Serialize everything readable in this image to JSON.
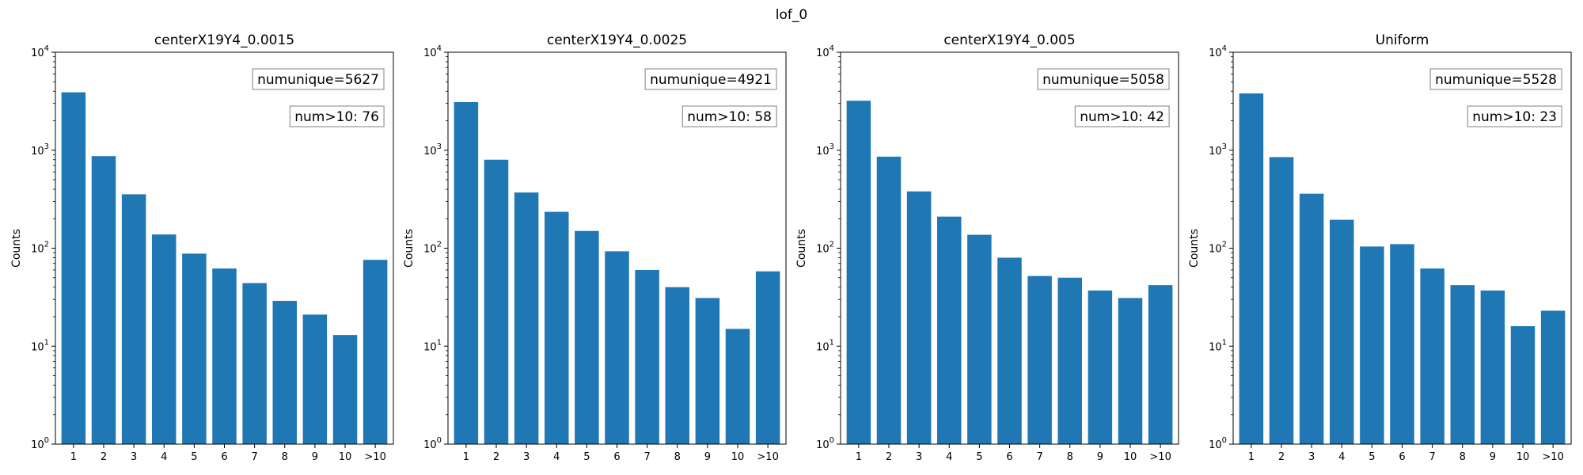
{
  "figure": {
    "title": "lof_0"
  },
  "chart_data": [
    {
      "type": "bar",
      "title": "centerX19Y4_0.0015",
      "categories": [
        "1",
        "2",
        "3",
        "4",
        "5",
        "6",
        "7",
        "8",
        "9",
        "10",
        ">10"
      ],
      "values": [
        3900,
        870,
        355,
        138,
        88,
        62,
        44,
        29,
        21,
        13,
        76
      ],
      "xlabel": "",
      "ylabel": "Counts",
      "yscale": "log",
      "ylim": [
        1,
        10000
      ],
      "ytick_labels": [
        {
          "base": "10",
          "exp": "0"
        },
        {
          "base": "10",
          "exp": "1"
        },
        {
          "base": "10",
          "exp": "2"
        },
        {
          "base": "10",
          "exp": "3"
        },
        {
          "base": "10",
          "exp": "4"
        }
      ],
      "annotations": [
        "numunique=5627",
        "num>10: 76"
      ],
      "bar_color": "#1f77b4",
      "grid": false
    },
    {
      "type": "bar",
      "title": "centerX19Y4_0.0025",
      "categories": [
        "1",
        "2",
        "3",
        "4",
        "5",
        "6",
        "7",
        "8",
        "9",
        "10",
        ">10"
      ],
      "values": [
        3100,
        800,
        370,
        235,
        150,
        93,
        60,
        40,
        31,
        15,
        58
      ],
      "xlabel": "",
      "ylabel": "Counts",
      "yscale": "log",
      "ylim": [
        1,
        10000
      ],
      "ytick_labels": [
        {
          "base": "10",
          "exp": "0"
        },
        {
          "base": "10",
          "exp": "1"
        },
        {
          "base": "10",
          "exp": "2"
        },
        {
          "base": "10",
          "exp": "3"
        },
        {
          "base": "10",
          "exp": "4"
        }
      ],
      "annotations": [
        "numunique=4921",
        "num>10: 58"
      ],
      "bar_color": "#1f77b4",
      "grid": false
    },
    {
      "type": "bar",
      "title": "centerX19Y4_0.005",
      "categories": [
        "1",
        "2",
        "3",
        "4",
        "5",
        "6",
        "7",
        "8",
        "9",
        "10",
        ">10"
      ],
      "values": [
        3200,
        860,
        380,
        210,
        137,
        80,
        52,
        50,
        37,
        31,
        42
      ],
      "xlabel": "",
      "ylabel": "Counts",
      "yscale": "log",
      "ylim": [
        1,
        10000
      ],
      "ytick_labels": [
        {
          "base": "10",
          "exp": "0"
        },
        {
          "base": "10",
          "exp": "1"
        },
        {
          "base": "10",
          "exp": "2"
        },
        {
          "base": "10",
          "exp": "3"
        },
        {
          "base": "10",
          "exp": "4"
        }
      ],
      "annotations": [
        "numunique=5058",
        "num>10: 42"
      ],
      "bar_color": "#1f77b4",
      "grid": false
    },
    {
      "type": "bar",
      "title": "Uniform",
      "categories": [
        "1",
        "2",
        "3",
        "4",
        "5",
        "6",
        "7",
        "8",
        "9",
        "10",
        ">10"
      ],
      "values": [
        3800,
        850,
        360,
        195,
        104,
        110,
        62,
        42,
        37,
        16,
        23
      ],
      "xlabel": "",
      "ylabel": "Counts",
      "yscale": "log",
      "ylim": [
        1,
        10000
      ],
      "ytick_labels": [
        {
          "base": "10",
          "exp": "0"
        },
        {
          "base": "10",
          "exp": "1"
        },
        {
          "base": "10",
          "exp": "2"
        },
        {
          "base": "10",
          "exp": "3"
        },
        {
          "base": "10",
          "exp": "4"
        }
      ],
      "annotations": [
        "numunique=5528",
        "num>10: 23"
      ],
      "bar_color": "#1f77b4",
      "grid": false
    }
  ]
}
